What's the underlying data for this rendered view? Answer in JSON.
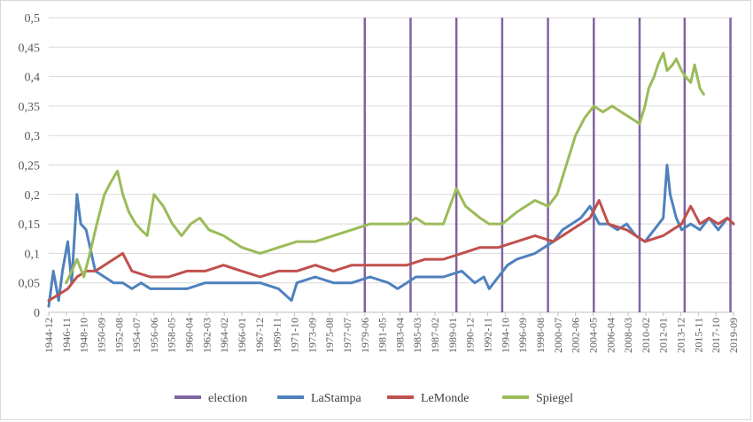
{
  "chart_data": {
    "type": "line",
    "title": "",
    "xlabel": "",
    "ylabel": "",
    "ylim": [
      0,
      0.5
    ],
    "y_ticks": [
      "0",
      "0,05",
      "0,1",
      "0,15",
      "0,2",
      "0,25",
      "0,3",
      "0,35",
      "0,4",
      "0,45",
      "0,5"
    ],
    "x_ticks": [
      "1944-12",
      "1946-11",
      "1948-10",
      "1950-09",
      "1952-08",
      "1954-07",
      "1956-06",
      "1958-05",
      "1960-04",
      "1962-03",
      "1964-02",
      "1966-01",
      "1967-12",
      "1969-11",
      "1971-10",
      "1973-09",
      "1975-08",
      "1977-07",
      "1979-06",
      "1981-05",
      "1983-04",
      "1985-03",
      "1987-02",
      "1989-01",
      "1990-12",
      "1992-11",
      "1994-10",
      "1996-09",
      "1998-08",
      "2000-07",
      "2002-06",
      "2004-05",
      "2006-04",
      "2008-03",
      "2010-02",
      "2012-01",
      "2013-12",
      "2015-11",
      "2017-10",
      "2019-09"
    ],
    "x_range": [
      "1944-12",
      "2019-09"
    ],
    "grid": "horizontal",
    "legend_position": "bottom",
    "elections": [
      "1979-06",
      "1984-06",
      "1989-06",
      "1994-06",
      "1999-06",
      "2004-06",
      "2009-06",
      "2014-05",
      "2019-05"
    ],
    "series": [
      {
        "name": "election",
        "color": "#8064a2",
        "kind": "vertical-lines"
      },
      {
        "name": "LaStampa",
        "color": "#4f81bd",
        "x": [
          "1944-12",
          "1945-06",
          "1946-01",
          "1946-06",
          "1947-01",
          "1947-06",
          "1948-01",
          "1948-06",
          "1949-01",
          "1950-01",
          "1951-01",
          "1952-01",
          "1953-01",
          "1954-01",
          "1955-01",
          "1956-01",
          "1958-01",
          "1960-01",
          "1962-01",
          "1964-01",
          "1966-01",
          "1968-01",
          "1970-01",
          "1971-06",
          "1972-01",
          "1974-01",
          "1976-01",
          "1978-01",
          "1980-01",
          "1982-01",
          "1983-01",
          "1984-01",
          "1985-01",
          "1986-01",
          "1988-01",
          "1990-01",
          "1991-06",
          "1992-06",
          "1993-01",
          "1994-01",
          "1995-01",
          "1996-01",
          "1998-01",
          "2000-01",
          "2001-01",
          "2002-01",
          "2003-01",
          "2004-01",
          "2005-01",
          "2006-01",
          "2007-01",
          "2008-01",
          "2009-01",
          "2010-01",
          "2011-01",
          "2012-01",
          "2012-06",
          "2012-10",
          "2013-06",
          "2014-01",
          "2015-01",
          "2016-01",
          "2017-01",
          "2018-01",
          "2019-01",
          "2019-09"
        ],
        "values": [
          0.01,
          0.07,
          0.02,
          0.07,
          0.12,
          0.05,
          0.2,
          0.15,
          0.14,
          0.07,
          0.06,
          0.05,
          0.05,
          0.04,
          0.05,
          0.04,
          0.04,
          0.04,
          0.05,
          0.05,
          0.05,
          0.05,
          0.04,
          0.02,
          0.05,
          0.06,
          0.05,
          0.05,
          0.06,
          0.05,
          0.04,
          0.05,
          0.06,
          0.06,
          0.06,
          0.07,
          0.05,
          0.06,
          0.04,
          0.06,
          0.08,
          0.09,
          0.1,
          0.12,
          0.14,
          0.15,
          0.16,
          0.18,
          0.15,
          0.15,
          0.14,
          0.15,
          0.13,
          0.12,
          0.14,
          0.16,
          0.25,
          0.2,
          0.16,
          0.14,
          0.15,
          0.14,
          0.16,
          0.14,
          0.16,
          0.15
        ]
      },
      {
        "name": "LeMonde",
        "color": "#c0504d",
        "x": [
          "1944-12",
          "1946-01",
          "1947-01",
          "1948-01",
          "1949-01",
          "1950-01",
          "1951-01",
          "1952-01",
          "1953-01",
          "1954-01",
          "1956-01",
          "1958-01",
          "1960-01",
          "1962-01",
          "1964-01",
          "1966-01",
          "1968-01",
          "1970-01",
          "1972-01",
          "1974-01",
          "1976-01",
          "1978-01",
          "1980-01",
          "1982-01",
          "1984-01",
          "1986-01",
          "1988-01",
          "1990-01",
          "1992-01",
          "1994-01",
          "1996-01",
          "1998-01",
          "2000-01",
          "2002-01",
          "2004-01",
          "2005-01",
          "2006-01",
          "2008-01",
          "2010-01",
          "2012-01",
          "2014-01",
          "2015-01",
          "2016-01",
          "2017-01",
          "2018-01",
          "2019-01",
          "2019-09"
        ],
        "values": [
          0.02,
          0.03,
          0.04,
          0.06,
          0.07,
          0.07,
          0.08,
          0.09,
          0.1,
          0.07,
          0.06,
          0.06,
          0.07,
          0.07,
          0.08,
          0.07,
          0.06,
          0.07,
          0.07,
          0.08,
          0.07,
          0.08,
          0.08,
          0.08,
          0.08,
          0.09,
          0.09,
          0.1,
          0.11,
          0.11,
          0.12,
          0.13,
          0.12,
          0.14,
          0.16,
          0.19,
          0.15,
          0.14,
          0.12,
          0.13,
          0.15,
          0.18,
          0.15,
          0.16,
          0.15,
          0.16,
          0.15
        ]
      },
      {
        "name": "Spiegel",
        "color": "#9bbb59",
        "x": [
          "1946-11",
          "1947-06",
          "1948-01",
          "1948-10",
          "1949-06",
          "1950-03",
          "1951-01",
          "1951-09",
          "1952-06",
          "1953-01",
          "1953-09",
          "1954-06",
          "1955-01",
          "1955-09",
          "1956-06",
          "1957-06",
          "1958-06",
          "1959-06",
          "1960-06",
          "1961-06",
          "1962-06",
          "1964-01",
          "1966-01",
          "1968-01",
          "1970-01",
          "1972-01",
          "1974-01",
          "1976-01",
          "1978-01",
          "1980-01",
          "1982-01",
          "1984-01",
          "1985-01",
          "1986-01",
          "1988-01",
          "1989-06",
          "1990-06",
          "1992-01",
          "1993-01",
          "1994-06",
          "1996-01",
          "1998-01",
          "1999-06",
          "2000-06",
          "2001-06",
          "2002-06",
          "2003-06",
          "2004-06",
          "2005-06",
          "2006-06",
          "2007-06",
          "2008-06",
          "2009-06",
          "2010-01",
          "2010-06",
          "2011-01",
          "2011-06",
          "2012-01",
          "2012-06",
          "2013-01",
          "2013-06",
          "2014-01",
          "2014-06",
          "2015-01",
          "2015-06",
          "2016-01",
          "2016-06"
        ],
        "values": [
          0.05,
          0.07,
          0.09,
          0.06,
          0.1,
          0.15,
          0.2,
          0.22,
          0.24,
          0.2,
          0.17,
          0.15,
          0.14,
          0.13,
          0.2,
          0.18,
          0.15,
          0.13,
          0.15,
          0.16,
          0.14,
          0.13,
          0.11,
          0.1,
          0.11,
          0.12,
          0.12,
          0.13,
          0.14,
          0.15,
          0.15,
          0.15,
          0.16,
          0.15,
          0.15,
          0.21,
          0.18,
          0.16,
          0.15,
          0.15,
          0.17,
          0.19,
          0.18,
          0.2,
          0.25,
          0.3,
          0.33,
          0.35,
          0.34,
          0.35,
          0.34,
          0.33,
          0.32,
          0.35,
          0.38,
          0.4,
          0.42,
          0.44,
          0.41,
          0.42,
          0.43,
          0.41,
          0.4,
          0.39,
          0.42,
          0.38,
          0.37
        ]
      }
    ]
  }
}
